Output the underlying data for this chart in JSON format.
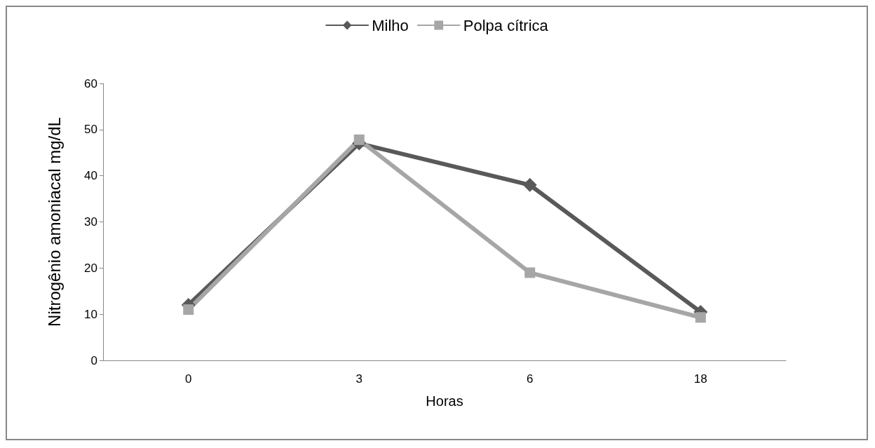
{
  "chart_data": {
    "type": "line",
    "xlabel": "Horas",
    "ylabel": "Nitrogênio amoniacal mg/dL",
    "categories": [
      "0",
      "3",
      "6",
      "18"
    ],
    "series": [
      {
        "name": "Milho",
        "color": "#595959",
        "marker": "diamond",
        "values": [
          12,
          47,
          38,
          10.5
        ]
      },
      {
        "name": "Polpa cítrica",
        "color": "#a6a6a6",
        "marker": "square",
        "values": [
          11,
          47.8,
          19,
          9.3
        ]
      }
    ],
    "ylim": [
      0,
      60
    ],
    "yticks": [
      0,
      10,
      20,
      30,
      40,
      50,
      60
    ],
    "grid": false,
    "legend": "top",
    "line_style": "solid"
  }
}
